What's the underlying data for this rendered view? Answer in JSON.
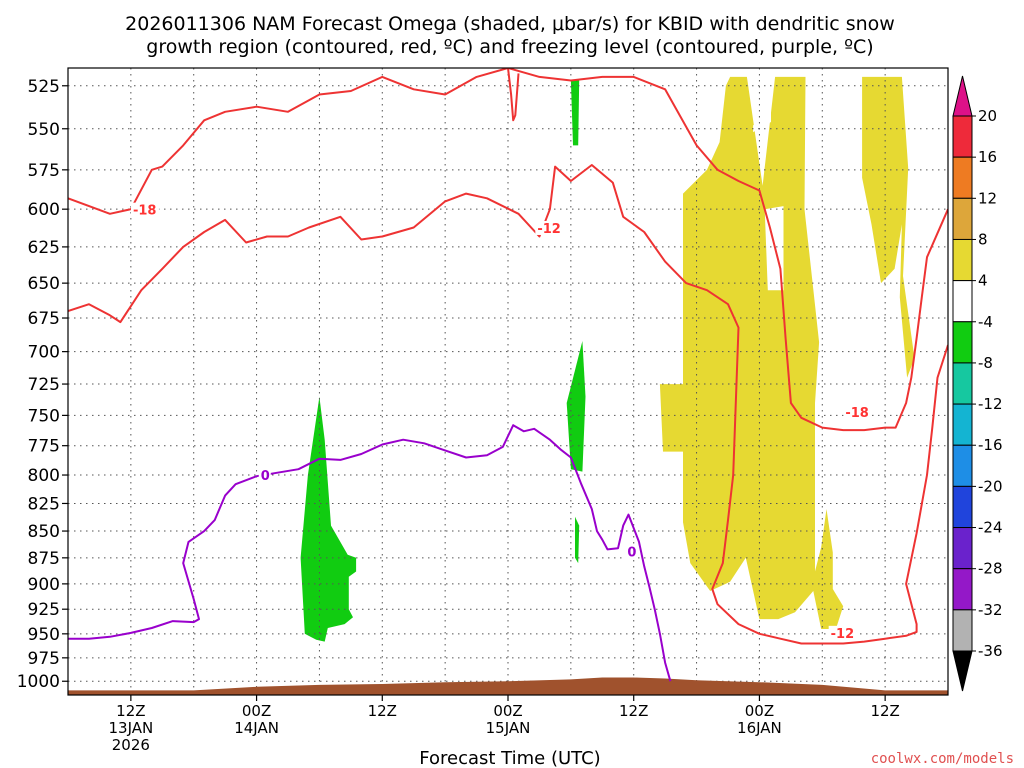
{
  "chart_data": {
    "type": "heatmap",
    "title_line1": "2026011306 NAM Forecast Omega (shaded, μbar/s) for KBID with dendritic snow",
    "title_line2": "growth region (contoured, red, ºC) and freezing level (contoured, purple, ºC)",
    "xlabel": "Forecast Time (UTC)",
    "credit": "coolwx.com/models",
    "x_unit": "forecast hour from 2026-01-13 06Z",
    "xlim": [
      0,
      84
    ],
    "ylim_hPa": [
      1015,
      515
    ],
    "y_ticks": [
      "525",
      "550",
      "575",
      "600",
      "625",
      "650",
      "675",
      "700",
      "725",
      "750",
      "775",
      "800",
      "825",
      "850",
      "875",
      "900",
      "925",
      "950",
      "975",
      "1000"
    ],
    "x_ticks": [
      {
        "hour": 6,
        "lines": [
          "12Z",
          "13JAN",
          "2026"
        ]
      },
      {
        "hour": 18,
        "lines": [
          "00Z",
          "14JAN"
        ]
      },
      {
        "hour": 30,
        "lines": [
          "12Z"
        ]
      },
      {
        "hour": 42,
        "lines": [
          "00Z",
          "15JAN"
        ]
      },
      {
        "hour": 54,
        "lines": [
          "12Z"
        ]
      },
      {
        "hour": 66,
        "lines": [
          "00Z",
          "16JAN"
        ]
      },
      {
        "hour": 78,
        "lines": [
          "12Z"
        ]
      }
    ],
    "x_minor_grid_hours": [
      12,
      24,
      36,
      48,
      60,
      72
    ],
    "colorbar": {
      "labels": [
        "20",
        "16",
        "12",
        "8",
        "4",
        "-4",
        "-8",
        "-12",
        "-16",
        "-20",
        "-24",
        "-28",
        "-32",
        "-36"
      ],
      "colors": [
        "#ee2a3a",
        "#ee7b22",
        "#dda63a",
        "#e6d932",
        "#ffffff",
        "#11cc11",
        "#16c8a0",
        "#14b4d2",
        "#1e8ee6",
        "#2044dc",
        "#6a22cc",
        "#9418c8",
        "#b2b2b2"
      ],
      "over_color": "#dd1188",
      "under_color": "#000000"
    },
    "contour_labels": [
      {
        "text": "-18",
        "color": "#ff3333",
        "hour": 6.2,
        "p": 601
      },
      {
        "text": "-12",
        "color": "#ff3333",
        "hour": 44.8,
        "p": 613
      },
      {
        "text": "-18",
        "color": "#ff3333",
        "hour": 74.2,
        "p": 748
      },
      {
        "text": "-12",
        "color": "#ff3333",
        "hour": 72.8,
        "p": 950
      },
      {
        "text": "0",
        "color": "#9900cc",
        "hour": 18.4,
        "p": 801
      },
      {
        "text": "0",
        "color": "#9900cc",
        "hour": 53.4,
        "p": 870
      }
    ],
    "terrain": {
      "color": "#a0522d",
      "hours": [
        0,
        12,
        18,
        24,
        30,
        36,
        42,
        48,
        51,
        54,
        57,
        60,
        66,
        72,
        78,
        84
      ],
      "surface_hPa": [
        1010,
        1010,
        1006,
        1004,
        1003,
        1001,
        1000,
        998,
        996,
        996,
        997,
        999,
        1001,
        1004,
        1010,
        1010
      ]
    },
    "omega_regions": [
      {
        "value": -6,
        "color": "#11cc11",
        "points": [
          [
            22.6,
            950
          ],
          [
            22.2,
            875
          ],
          [
            22.9,
            800
          ],
          [
            24.0,
            735
          ],
          [
            24.5,
            770
          ],
          [
            25.1,
            845
          ],
          [
            26.7,
            872
          ],
          [
            27.5,
            875
          ],
          [
            27.5,
            888
          ],
          [
            26.8,
            893
          ],
          [
            26.8,
            925
          ],
          [
            27.2,
            933
          ],
          [
            26.4,
            940
          ],
          [
            24.8,
            944
          ],
          [
            24.5,
            958
          ],
          [
            23.7,
            956
          ]
        ]
      },
      {
        "value": -6,
        "color": "#11cc11",
        "points": [
          [
            48.0,
            795
          ],
          [
            47.6,
            740
          ],
          [
            49.1,
            692
          ],
          [
            49.4,
            735
          ],
          [
            49.1,
            797
          ]
        ]
      },
      {
        "value": -6,
        "color": "#11cc11",
        "points": [
          [
            48.0,
            522
          ],
          [
            48.8,
            522
          ],
          [
            48.7,
            560
          ],
          [
            48.2,
            560
          ]
        ]
      },
      {
        "value": -6,
        "color": "#11cc11",
        "points": [
          [
            48.4,
            837
          ],
          [
            48.8,
            845
          ],
          [
            48.7,
            880
          ],
          [
            48.4,
            875
          ]
        ]
      },
      {
        "value": 5,
        "color": "#e6d932",
        "points": [
          [
            58.7,
            590
          ],
          [
            61.0,
            575
          ],
          [
            62.2,
            558
          ],
          [
            62.8,
            525
          ],
          [
            63.2,
            520
          ],
          [
            64.8,
            520
          ],
          [
            66.3,
            585
          ],
          [
            67.5,
            520
          ],
          [
            70.4,
            520
          ],
          [
            70.3,
            600
          ],
          [
            71.7,
            693
          ],
          [
            71.3,
            740
          ],
          [
            71.3,
            905
          ],
          [
            69.4,
            928
          ],
          [
            67.8,
            935
          ],
          [
            66.0,
            935
          ],
          [
            64.7,
            875
          ],
          [
            63.2,
            898
          ],
          [
            61.3,
            907
          ],
          [
            59.4,
            880
          ],
          [
            58.7,
            842
          ],
          [
            58.7,
            780
          ],
          [
            56.8,
            780
          ],
          [
            56.5,
            725
          ],
          [
            58.7,
            725
          ]
        ]
      },
      {
        "value": 5,
        "color": "#e6d932",
        "points": [
          [
            75.8,
            520
          ],
          [
            79.6,
            520
          ],
          [
            80.2,
            574
          ],
          [
            79.7,
            645
          ],
          [
            80.8,
            705
          ],
          [
            80.1,
            720
          ],
          [
            79.4,
            660
          ],
          [
            79.6,
            610
          ],
          [
            78.9,
            640
          ],
          [
            77.6,
            650
          ],
          [
            76.7,
            610
          ],
          [
            75.8,
            580
          ]
        ]
      },
      {
        "value": 5,
        "color": "#e6d932",
        "points": [
          [
            71.9,
            865
          ],
          [
            72.4,
            830
          ],
          [
            73.0,
            870
          ],
          [
            73.0,
            905
          ],
          [
            74.0,
            922
          ],
          [
            73.3,
            945
          ],
          [
            71.9,
            945
          ],
          [
            71.0,
            900
          ]
        ]
      }
    ],
    "omega_holes": [
      {
        "color": "#ffffff",
        "points": [
          [
            65.4,
            548
          ],
          [
            67.1,
            540
          ],
          [
            67.1,
            546
          ],
          [
            65.4,
            552
          ]
        ]
      },
      {
        "color": "#ffffff",
        "points": [
          [
            66.5,
            600
          ],
          [
            68.3,
            598
          ],
          [
            68.3,
            655
          ],
          [
            66.8,
            655
          ]
        ]
      }
    ],
    "series": [
      {
        "name": "-18 C isotherm",
        "color": "#ee3333",
        "points": [
          [
            0,
            593
          ],
          [
            2,
            598
          ],
          [
            4,
            603
          ],
          [
            6,
            600
          ],
          [
            8,
            575
          ],
          [
            9,
            573
          ],
          [
            11,
            560
          ],
          [
            13,
            545
          ],
          [
            15,
            540
          ],
          [
            18,
            537
          ],
          [
            21,
            540
          ],
          [
            24,
            530
          ],
          [
            27,
            528
          ],
          [
            30,
            520
          ],
          [
            33,
            527
          ],
          [
            36,
            530
          ],
          [
            39,
            520
          ],
          [
            42,
            515
          ],
          [
            45,
            520
          ],
          [
            48,
            522
          ],
          [
            51,
            520
          ],
          [
            54,
            520
          ],
          [
            57,
            527
          ],
          [
            60,
            560
          ],
          [
            62,
            575
          ],
          [
            64,
            582
          ],
          [
            66,
            588
          ],
          [
            67,
            612
          ],
          [
            68,
            640
          ],
          [
            68.5,
            690
          ],
          [
            69,
            740
          ],
          [
            70,
            752
          ],
          [
            72,
            760
          ],
          [
            74,
            762
          ],
          [
            76,
            762
          ],
          [
            78,
            760
          ],
          [
            79,
            760
          ],
          [
            80,
            740
          ],
          [
            80.5,
            720
          ],
          [
            81,
            690
          ],
          [
            81.5,
            660
          ],
          [
            82,
            632
          ],
          [
            84,
            600
          ]
        ]
      },
      {
        "name": "-18 C segment top",
        "color": "#ee3333",
        "points": [
          [
            42,
            515
          ],
          [
            42.3,
            530
          ],
          [
            42.5,
            545
          ],
          [
            42.7,
            542
          ],
          [
            43,
            518
          ]
        ]
      },
      {
        "name": "-12 C isotherm",
        "color": "#ee3333",
        "points": [
          [
            0,
            670
          ],
          [
            2,
            665
          ],
          [
            4,
            673
          ],
          [
            5,
            678
          ],
          [
            7,
            655
          ],
          [
            9,
            640
          ],
          [
            11,
            625
          ],
          [
            13,
            615
          ],
          [
            15,
            607
          ],
          [
            17,
            622
          ],
          [
            19,
            618
          ],
          [
            21,
            618
          ],
          [
            23,
            612
          ],
          [
            26,
            605
          ],
          [
            28,
            620
          ],
          [
            30,
            618
          ],
          [
            33,
            612
          ],
          [
            36,
            595
          ],
          [
            38,
            590
          ],
          [
            40,
            593
          ],
          [
            43,
            603
          ],
          [
            45,
            618
          ],
          [
            46,
            600
          ],
          [
            46.5,
            573
          ],
          [
            48,
            582
          ],
          [
            50,
            572
          ],
          [
            52,
            583
          ],
          [
            53,
            605
          ],
          [
            55,
            615
          ],
          [
            57,
            635
          ],
          [
            59,
            650
          ],
          [
            61,
            655
          ],
          [
            63,
            665
          ],
          [
            64,
            682
          ],
          [
            63.5,
            800
          ],
          [
            63,
            840
          ],
          [
            62.5,
            880
          ],
          [
            61.5,
            905
          ],
          [
            62,
            920
          ],
          [
            64,
            940
          ],
          [
            66,
            950
          ],
          [
            68,
            955
          ],
          [
            70,
            960
          ],
          [
            72,
            960
          ],
          [
            74,
            960
          ],
          [
            76,
            958
          ],
          [
            78,
            955
          ],
          [
            80,
            952
          ],
          [
            81,
            948
          ],
          [
            81,
            940
          ],
          [
            80,
            900
          ],
          [
            81,
            852
          ],
          [
            82,
            800
          ],
          [
            82.5,
            760
          ],
          [
            83,
            720
          ],
          [
            84,
            695
          ]
        ]
      },
      {
        "name": "0 C freezing level",
        "color": "#9900cc",
        "points": [
          [
            0,
            955
          ],
          [
            2,
            955
          ],
          [
            4,
            953
          ],
          [
            6,
            949
          ],
          [
            8,
            944
          ],
          [
            10,
            937
          ],
          [
            12,
            938
          ],
          [
            12.5,
            935
          ],
          [
            12,
            915
          ],
          [
            11,
            880
          ],
          [
            11.5,
            860
          ],
          [
            13,
            850
          ],
          [
            14,
            840
          ],
          [
            15,
            818
          ],
          [
            16,
            808
          ],
          [
            18,
            801
          ],
          [
            20,
            798
          ],
          [
            22,
            795
          ],
          [
            24,
            786
          ],
          [
            26,
            787
          ],
          [
            28,
            782
          ],
          [
            30,
            774
          ],
          [
            32,
            770
          ],
          [
            34,
            773
          ],
          [
            36,
            779
          ],
          [
            38,
            785
          ],
          [
            40,
            783
          ],
          [
            41.5,
            776
          ],
          [
            42.5,
            758
          ],
          [
            43.5,
            763
          ],
          [
            44.5,
            761
          ],
          [
            46,
            770
          ],
          [
            47,
            778
          ],
          [
            48,
            785
          ],
          [
            49,
            808
          ],
          [
            50,
            830
          ],
          [
            50.5,
            850
          ],
          [
            51,
            858
          ],
          [
            51.5,
            867
          ],
          [
            52.5,
            866
          ],
          [
            53,
            845
          ],
          [
            53.5,
            835
          ],
          [
            54.5,
            860
          ],
          [
            55,
            883
          ],
          [
            55.5,
            903
          ],
          [
            56,
            925
          ],
          [
            56.5,
            950
          ],
          [
            57,
            980
          ],
          [
            57.5,
            1000
          ]
        ]
      }
    ]
  }
}
